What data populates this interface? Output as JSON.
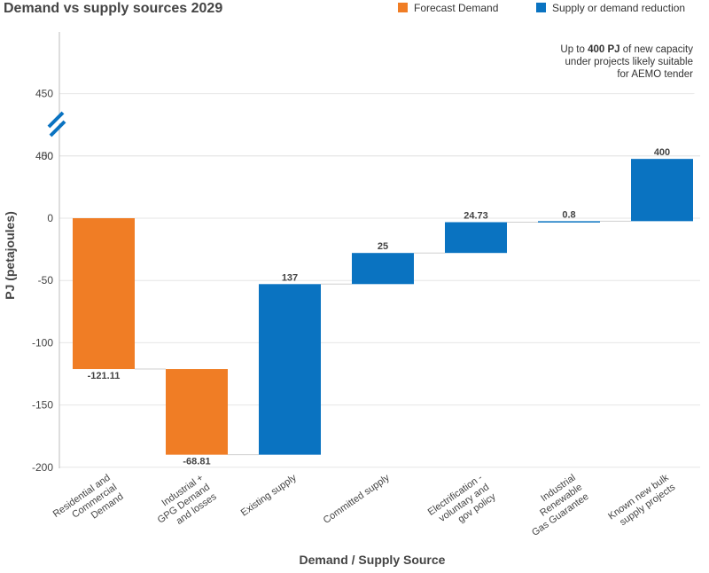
{
  "chart_data": {
    "type": "bar",
    "subtype": "waterfall",
    "title": "Demand vs supply sources 2029",
    "xlabel": "Demand / Supply Source",
    "ylabel": "PJ (petajoules)",
    "legend": {
      "placement": "top-right",
      "entries": [
        {
          "name": "Forecast Demand",
          "color": "#f07d25"
        },
        {
          "name": "Supply or demand reduction",
          "color": "#0a73c1"
        }
      ]
    },
    "y_ticks": [
      "450",
      "400",
      "50",
      "0",
      "-50",
      "-100",
      "-150",
      "-200"
    ],
    "y_break": "between 50 and 400",
    "categories": [
      [
        "Residential and",
        "Commercial",
        "Demand"
      ],
      [
        "Industrial +",
        "GPG Demand",
        "and losses"
      ],
      [
        "Existing supply"
      ],
      [
        "Committed supply"
      ],
      [
        "Electrification -",
        "voluntary and",
        "gov policy"
      ],
      [
        "Industrial",
        "Renewable",
        "Gas Guarantee"
      ],
      [
        "Known new bulk",
        "supply projects"
      ]
    ],
    "bars": [
      {
        "label": "-121.11",
        "start": 0,
        "end": -121.11,
        "group": "Forecast Demand"
      },
      {
        "label": "-68.81",
        "start": -121.11,
        "end": -189.92,
        "group": "Forecast Demand"
      },
      {
        "label": "137",
        "start": -189.92,
        "end": -52.92,
        "group": "Supply or demand reduction"
      },
      {
        "label": "25",
        "start": -52.92,
        "end": -27.92,
        "group": "Supply or demand reduction"
      },
      {
        "label": "24.73",
        "start": -27.92,
        "end": -3.19,
        "group": "Supply or demand reduction"
      },
      {
        "label": "0.8",
        "start": -3.19,
        "end": -2.39,
        "group": "Supply or demand reduction"
      },
      {
        "label": "400",
        "start": -2.39,
        "end": 397.61,
        "group": "Supply or demand reduction"
      }
    ],
    "annotation": {
      "parts": [
        {
          "text": "Up to ",
          "bold": false
        },
        {
          "text": "400 PJ",
          "bold": true
        },
        {
          "text": " of new capacity",
          "bold": false
        }
      ],
      "line2": "under projects likely suitable",
      "line3": "for AEMO tender"
    }
  }
}
